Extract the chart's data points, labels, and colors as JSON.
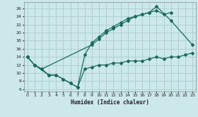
{
  "background_color": "#cce8ea",
  "grid_color": "#aacccc",
  "line_color": "#1a6b5e",
  "xlabel": "Humidex (Indice chaleur)",
  "xlim": [
    -0.5,
    23.5
  ],
  "ylim": [
    5.5,
    27.5
  ],
  "yticks": [
    6,
    8,
    10,
    12,
    14,
    16,
    18,
    20,
    22,
    24,
    26
  ],
  "xticks": [
    0,
    1,
    2,
    3,
    4,
    5,
    6,
    7,
    8,
    9,
    10,
    11,
    12,
    13,
    14,
    15,
    16,
    17,
    18,
    19,
    20,
    21,
    22,
    23
  ],
  "line1_x": [
    0,
    1,
    2,
    3,
    4,
    5,
    6,
    7,
    8,
    9,
    10,
    11,
    12,
    13,
    14,
    15,
    16,
    17,
    18,
    20,
    23
  ],
  "line1_y": [
    14,
    12,
    11,
    9.5,
    9.5,
    8.5,
    7.5,
    6.5,
    14.5,
    17.5,
    19,
    20.5,
    21.5,
    22.5,
    23.5,
    24,
    24.5,
    25,
    26.5,
    23,
    17
  ],
  "line2_x": [
    0,
    1,
    2,
    9,
    10,
    11,
    12,
    13,
    14,
    15,
    16,
    17,
    18,
    19,
    20
  ],
  "line2_y": [
    14,
    12,
    11,
    17,
    18.5,
    20,
    21,
    22,
    23,
    24,
    24.5,
    25,
    25.5,
    24.5,
    25
  ],
  "line3_x": [
    0,
    1,
    3,
    4,
    5,
    6,
    7,
    8,
    9,
    10,
    11,
    12,
    13,
    14,
    15,
    16,
    17,
    18,
    19,
    20,
    21,
    22,
    23
  ],
  "line3_y": [
    14,
    12,
    9.5,
    9.5,
    8.5,
    7.5,
    6.5,
    11,
    11.5,
    12,
    12,
    12.5,
    12.5,
    13,
    13,
    13,
    13.5,
    14,
    13.5,
    14,
    14,
    14.5,
    15
  ]
}
